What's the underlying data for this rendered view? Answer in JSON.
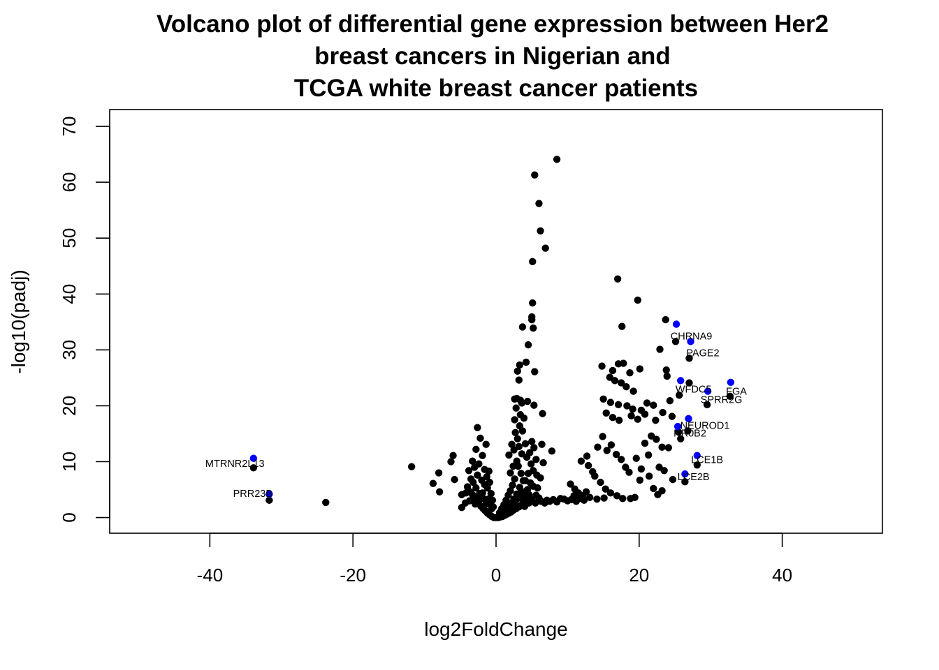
{
  "chart_data": {
    "type": "scatter",
    "title_lines": [
      "Volcano plot of differential gene expression between Her2",
      "breast cancers in Nigerian and",
      "TCGA white breast cancer patients"
    ],
    "xlabel": "log2FoldChange",
    "ylabel": "-log10(padj)",
    "xlim": [
      -54,
      54
    ],
    "ylim": [
      -2.8,
      73
    ],
    "xticks": [
      -40,
      -20,
      0,
      20,
      40
    ],
    "yticks": [
      0,
      10,
      20,
      30,
      40,
      50,
      60,
      70
    ],
    "colors": {
      "points": "#000000",
      "highlight": "#0000ff",
      "frame": "#000000"
    },
    "grid": false,
    "series": [
      {
        "color": "#000000",
        "points": [
          [
            8.5,
            64.1
          ],
          [
            5.4,
            61.3
          ],
          [
            6.0,
            56.2
          ],
          [
            6.2,
            51.3
          ],
          [
            6.9,
            48.2
          ],
          [
            5.1,
            45.8
          ],
          [
            17.0,
            42.7
          ],
          [
            19.8,
            38.9
          ],
          [
            5.1,
            38.4
          ],
          [
            5.0,
            35.9
          ],
          [
            5.0,
            35.4
          ],
          [
            5.2,
            33.9
          ],
          [
            3.7,
            34.1
          ],
          [
            17.6,
            34.2
          ],
          [
            23.7,
            35.4
          ],
          [
            4.5,
            30.9
          ],
          [
            25.1,
            31.5
          ],
          [
            22.9,
            30.1
          ],
          [
            27.0,
            28.5
          ],
          [
            4.2,
            27.8
          ],
          [
            3.3,
            27.3
          ],
          [
            3.0,
            26.2
          ],
          [
            3.2,
            24.6
          ],
          [
            5.4,
            26.1
          ],
          [
            14.8,
            27.1
          ],
          [
            16.3,
            26.3
          ],
          [
            17.1,
            27.5
          ],
          [
            17.8,
            27.6
          ],
          [
            18.7,
            25.9
          ],
          [
            20.1,
            26.6
          ],
          [
            15.9,
            25.1
          ],
          [
            16.6,
            24.5
          ],
          [
            17.5,
            24.1
          ],
          [
            18.2,
            23.4
          ],
          [
            19.2,
            22.6
          ],
          [
            23.8,
            26.4
          ],
          [
            23.9,
            25.3
          ],
          [
            25.6,
            21.9
          ],
          [
            27.0,
            24.1
          ],
          [
            29.5,
            20.2
          ],
          [
            32.7,
            21.7
          ],
          [
            2.6,
            21.2
          ],
          [
            3.4,
            21.0
          ],
          [
            4.4,
            20.8
          ],
          [
            5.3,
            20.1
          ],
          [
            6.5,
            18.6
          ],
          [
            15.0,
            21.2
          ],
          [
            16.0,
            20.6
          ],
          [
            17.1,
            20.2
          ],
          [
            18.3,
            20.0
          ],
          [
            19.1,
            19.4
          ],
          [
            20.3,
            19.2
          ],
          [
            21.1,
            20.5
          ],
          [
            22.0,
            20.1
          ],
          [
            23.3,
            18.8
          ],
          [
            24.3,
            20.9
          ],
          [
            24.6,
            18.1
          ],
          [
            25.5,
            15.3
          ],
          [
            15.4,
            18.7
          ],
          [
            16.3,
            17.9
          ],
          [
            17.2,
            17.4
          ],
          [
            18.9,
            18.2
          ],
          [
            19.8,
            17.6
          ],
          [
            20.8,
            18.5
          ],
          [
            22.3,
            17.4
          ],
          [
            25.8,
            14.1
          ],
          [
            26.8,
            15.5
          ],
          [
            28.1,
            9.4
          ],
          [
            26.4,
            6.4
          ],
          [
            21.7,
            14.6
          ],
          [
            22.4,
            14.0
          ],
          [
            23.2,
            12.6
          ],
          [
            24.1,
            12.5
          ],
          [
            20.8,
            13.3
          ],
          [
            21.3,
            11.2
          ],
          [
            22.8,
            9.0
          ],
          [
            23.5,
            8.4
          ],
          [
            24.7,
            6.8
          ],
          [
            19.6,
            10.6
          ],
          [
            20.3,
            8.7
          ],
          [
            21.4,
            7.4
          ],
          [
            22.0,
            5.2
          ],
          [
            22.6,
            4.1
          ],
          [
            23.2,
            4.8
          ],
          [
            20.1,
            6.7
          ],
          [
            19.4,
            3.6
          ],
          [
            18.8,
            3.4
          ],
          [
            12.7,
            11.0
          ],
          [
            11.9,
            10.1
          ],
          [
            12.9,
            9.3
          ],
          [
            13.5,
            8.2
          ],
          [
            14.2,
            12.6
          ],
          [
            14.9,
            14.5
          ],
          [
            15.5,
            12.0
          ],
          [
            16.1,
            13.0
          ],
          [
            16.8,
            11.3
          ],
          [
            17.5,
            10.4
          ],
          [
            18.1,
            9.0
          ],
          [
            18.6,
            8.1
          ],
          [
            13.8,
            7.4
          ],
          [
            14.6,
            6.3
          ],
          [
            15.3,
            5.1
          ],
          [
            16.0,
            4.4
          ],
          [
            16.9,
            3.9
          ],
          [
            17.7,
            3.4
          ],
          [
            10.4,
            6.0
          ],
          [
            11.0,
            5.1
          ],
          [
            11.5,
            4.4
          ],
          [
            10.9,
            3.9
          ],
          [
            11.7,
            3.4
          ],
          [
            12.1,
            3.9
          ],
          [
            12.6,
            4.6
          ],
          [
            13.1,
            3.6
          ],
          [
            14.1,
            3.3
          ],
          [
            15.1,
            3.5
          ],
          [
            8.0,
            3.2
          ],
          [
            9.0,
            3.4
          ],
          [
            10.0,
            3.0
          ],
          [
            6.3,
            2.9
          ],
          [
            7.1,
            3.1
          ],
          [
            5.5,
            2.6
          ],
          [
            5.8,
            5.3
          ],
          [
            6.2,
            7.1
          ],
          [
            6.6,
            9.8
          ],
          [
            7.8,
            11.9
          ],
          [
            6.4,
            13.1
          ],
          [
            5.0,
            13.6
          ],
          [
            5.3,
            12.5
          ],
          [
            4.7,
            11.6
          ],
          [
            5.6,
            10.4
          ],
          [
            4.3,
            10.8
          ],
          [
            4.9,
            9.6
          ],
          [
            5.2,
            8.4
          ],
          [
            4.5,
            7.9
          ],
          [
            5.7,
            7.6
          ],
          [
            4.1,
            6.6
          ],
          [
            4.8,
            6.2
          ],
          [
            5.2,
            5.6
          ],
          [
            4.4,
            5.0
          ],
          [
            4.0,
            4.6
          ],
          [
            4.6,
            4.1
          ],
          [
            3.9,
            3.6
          ],
          [
            4.3,
            3.1
          ],
          [
            3.8,
            2.7
          ],
          [
            3.5,
            2.2
          ],
          [
            3.2,
            1.9
          ],
          [
            2.8,
            1.6
          ],
          [
            2.4,
            1.3
          ],
          [
            2.1,
            1.0
          ],
          [
            1.8,
            0.8
          ],
          [
            1.5,
            0.6
          ],
          [
            1.2,
            0.4
          ],
          [
            0.9,
            0.2
          ],
          [
            0.6,
            0.1
          ],
          [
            0.3,
            0.0
          ],
          [
            0.0,
            0.0
          ],
          [
            -0.3,
            0.0
          ],
          [
            -0.6,
            0.2
          ],
          [
            -0.9,
            0.5
          ],
          [
            -1.2,
            0.8
          ],
          [
            -1.5,
            1.2
          ],
          [
            -1.8,
            1.6
          ],
          [
            -2.1,
            2.0
          ],
          [
            -2.4,
            2.5
          ],
          [
            -2.7,
            3.0
          ],
          [
            -3.0,
            3.6
          ],
          [
            -3.3,
            4.1
          ],
          [
            -3.6,
            4.6
          ],
          [
            -1.4,
            2.4
          ],
          [
            -1.8,
            3.4
          ],
          [
            -2.3,
            4.3
          ],
          [
            -2.8,
            5.3
          ],
          [
            -3.2,
            6.3
          ],
          [
            -2.0,
            6.7
          ],
          [
            -2.6,
            7.6
          ],
          [
            -1.6,
            8.6
          ],
          [
            -2.4,
            9.6
          ],
          [
            -3.3,
            10.1
          ],
          [
            -1.9,
            11.1
          ],
          [
            -2.8,
            12.2
          ],
          [
            -1.4,
            13.1
          ],
          [
            -2.2,
            14.2
          ],
          [
            -2.6,
            16.1
          ],
          [
            -4.2,
            4.4
          ],
          [
            -4.8,
            4.1
          ],
          [
            -5.8,
            6.8
          ],
          [
            -6.3,
            10.0
          ],
          [
            -6.0,
            11.1
          ],
          [
            -4.8,
            1.8
          ],
          [
            -8.0,
            8.0
          ],
          [
            -8.8,
            6.1
          ],
          [
            -7.9,
            4.6
          ],
          [
            -11.8,
            9.1
          ],
          [
            -23.8,
            2.7
          ],
          [
            -31.7,
            3.1
          ],
          [
            -33.9,
            8.9
          ],
          [
            0.5,
            0.9
          ],
          [
            0.8,
            1.6
          ],
          [
            1.1,
            2.3
          ],
          [
            1.4,
            3.1
          ],
          [
            1.7,
            4.0
          ],
          [
            2.0,
            4.8
          ],
          [
            2.3,
            5.8
          ],
          [
            2.6,
            6.9
          ],
          [
            2.0,
            8.0
          ],
          [
            2.4,
            9.2
          ],
          [
            2.9,
            10.1
          ],
          [
            1.8,
            11.2
          ],
          [
            2.5,
            12.1
          ],
          [
            3.2,
            12.7
          ],
          [
            2.2,
            13.1
          ],
          [
            3.0,
            14.1
          ],
          [
            2.7,
            15.2
          ],
          [
            3.3,
            16.4
          ],
          [
            2.6,
            17.5
          ],
          [
            3.4,
            18.4
          ],
          [
            2.8,
            19.6
          ],
          [
            3.6,
            20.5
          ],
          [
            2.9,
            21.3
          ],
          [
            3.9,
            17.8
          ],
          [
            3.7,
            15.5
          ],
          [
            4.1,
            13.2
          ],
          [
            3.6,
            11.4
          ],
          [
            3.1,
            9.2
          ],
          [
            3.5,
            7.9
          ],
          [
            3.8,
            6.6
          ],
          [
            3.3,
            5.4
          ],
          [
            2.9,
            4.2
          ],
          [
            2.5,
            3.3
          ],
          [
            2.1,
            2.6
          ],
          [
            1.7,
            2.0
          ],
          [
            1.3,
            1.6
          ],
          [
            -0.6,
            1.6
          ],
          [
            -0.9,
            2.4
          ],
          [
            -1.1,
            3.3
          ],
          [
            -0.7,
            4.3
          ],
          [
            -1.2,
            5.3
          ],
          [
            -0.9,
            6.3
          ],
          [
            -1.3,
            7.3
          ],
          [
            -1.0,
            8.3
          ],
          [
            -0.5,
            3.1
          ],
          [
            -0.4,
            1.9
          ],
          [
            -1.6,
            5.9
          ],
          [
            -1.9,
            4.4
          ],
          [
            -2.2,
            3.4
          ],
          [
            -2.9,
            2.4
          ],
          [
            -3.7,
            3.0
          ],
          [
            -4.3,
            2.6
          ],
          [
            -4.0,
            5.5
          ],
          [
            -3.5,
            6.9
          ],
          [
            -3.8,
            8.4
          ],
          [
            -3.0,
            9.0
          ],
          [
            1.0,
            0.3
          ],
          [
            1.6,
            1.2
          ],
          [
            2.2,
            1.9
          ],
          [
            2.7,
            2.4
          ],
          [
            3.0,
            3.4
          ],
          [
            3.4,
            4.4
          ],
          [
            4.0,
            2.0
          ],
          [
            4.6,
            2.6
          ],
          [
            5.0,
            3.2
          ],
          [
            5.6,
            4.0
          ],
          [
            6.0,
            3.5
          ],
          [
            6.8,
            2.6
          ],
          [
            7.5,
            2.9
          ],
          [
            8.5,
            2.8
          ],
          [
            9.5,
            3.3
          ],
          [
            10.5,
            3.2
          ],
          [
            11.2,
            2.9
          ],
          [
            12.3,
            3.1
          ]
        ]
      },
      {
        "color": "#0000ff",
        "points": [
          [
            25.2,
            34.6
          ],
          [
            27.2,
            31.5
          ],
          [
            25.8,
            24.5
          ],
          [
            32.8,
            24.2
          ],
          [
            29.6,
            22.6
          ],
          [
            26.9,
            17.7
          ],
          [
            25.4,
            16.3
          ],
          [
            28.1,
            11.1
          ],
          [
            26.4,
            7.8
          ],
          [
            -33.9,
            10.6
          ],
          [
            -31.7,
            4.2
          ]
        ]
      }
    ],
    "annotations": [
      {
        "text": "CHRNA9",
        "x": 27.3,
        "y": 32.5
      },
      {
        "text": "PAGE2",
        "x": 28.9,
        "y": 29.5
      },
      {
        "text": "WFDC5",
        "x": 27.6,
        "y": 23.0
      },
      {
        "text": "FGA",
        "x": 33.6,
        "y": 22.6
      },
      {
        "text": "SPRR2G",
        "x": 31.5,
        "y": 21.1
      },
      {
        "text": "NEUROD1",
        "x": 29.2,
        "y": 16.5
      },
      {
        "text": "NR0B2",
        "x": 27.1,
        "y": 15.1
      },
      {
        "text": "LCE1B",
        "x": 29.5,
        "y": 10.4
      },
      {
        "text": "LCE2B",
        "x": 27.6,
        "y": 7.3
      },
      {
        "text": "MTRNR2L13",
        "x": -36.5,
        "y": 9.7
      },
      {
        "text": "PRR23B",
        "x": -34.0,
        "y": 4.3
      }
    ]
  }
}
